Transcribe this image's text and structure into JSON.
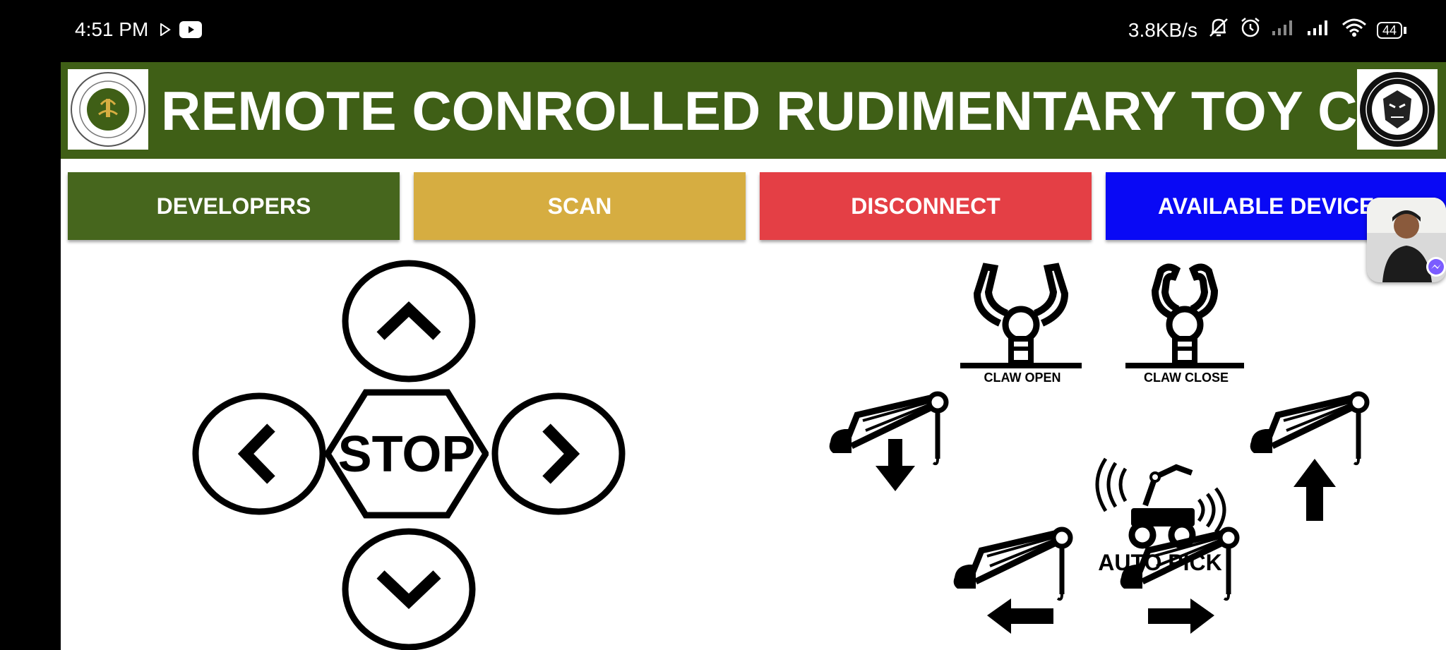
{
  "status_bar": {
    "time": "4:51 PM",
    "network_speed": "3.8KB/s",
    "battery": "44",
    "icons": [
      "play-store-icon",
      "youtube-icon",
      "mute-icon",
      "alarm-icon",
      "signal-icon",
      "signal-icon",
      "wifi-icon",
      "battery-icon"
    ]
  },
  "header": {
    "title": "REMOTE CONROLLED RUDIMENTARY TOY CAR",
    "background": "#3f5f16"
  },
  "toolbar": {
    "developers_label": "DEVELOPERS",
    "scan_label": "SCAN",
    "disconnect_label": "DISCONNECT",
    "available_devices_label": "AVAILABLE DEVICES"
  },
  "dpad": {
    "stop_label": "STOP"
  },
  "arm_controls": {
    "claw_open_label": "CLAW OPEN",
    "claw_close_label": "CLAW CLOSE",
    "auto_pick_label": "AUTO PICK"
  },
  "colors": {
    "developers": "#46661d",
    "scan": "#d6ad41",
    "disconnect": "#e43f45",
    "available_devices": "#0909f5"
  }
}
